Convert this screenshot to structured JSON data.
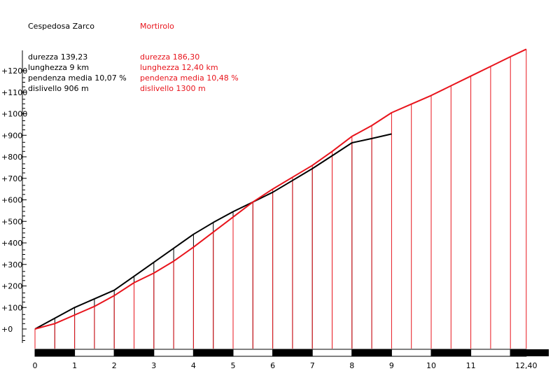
{
  "chart_data": {
    "type": "line",
    "xlabel": "",
    "ylabel": "",
    "xlim": [
      0,
      12.4
    ],
    "ylim": [
      0,
      1300
    ],
    "x_tick_labels": [
      "0",
      "1",
      "2",
      "3",
      "4",
      "5",
      "6",
      "7",
      "8",
      "9",
      "10",
      "11",
      "12,40"
    ],
    "y_tick_labels": [
      "+0",
      "+100",
      "+200",
      "+300",
      "+400",
      "+500",
      "+600",
      "+700",
      "+800",
      "+900",
      "+1000",
      "+1100",
      "+1200"
    ],
    "y_tick_values": [
      0,
      100,
      200,
      300,
      400,
      500,
      600,
      700,
      800,
      900,
      1000,
      1100,
      1200
    ],
    "series": [
      {
        "name": "Cespedosa Zarco",
        "color": "#000000",
        "x": [
          0,
          0.5,
          1,
          1.5,
          2,
          2.5,
          3,
          3.5,
          4,
          4.5,
          5,
          5.5,
          6,
          6.5,
          7,
          7.5,
          8,
          8.5,
          9
        ],
        "y": [
          0,
          50,
          100,
          140,
          180,
          245,
          310,
          375,
          440,
          495,
          545,
          590,
          635,
          690,
          745,
          805,
          865,
          885,
          906
        ],
        "stats": [
          "durezza 139,23",
          "lunghezza 9 km",
          "pendenza media 10,07 %",
          "dislivello 906 m"
        ]
      },
      {
        "name": "Mortirolo",
        "color": "#e8141c",
        "x": [
          0,
          0.5,
          1,
          1.5,
          2,
          2.5,
          3,
          3.5,
          4,
          4.5,
          5,
          5.5,
          6,
          6.5,
          7,
          7.5,
          8,
          8.5,
          9,
          9.5,
          10,
          10.5,
          11,
          11.5,
          12,
          12.4
        ],
        "y": [
          0,
          25,
          65,
          105,
          155,
          215,
          260,
          315,
          380,
          450,
          520,
          590,
          650,
          705,
          760,
          825,
          895,
          945,
          1005,
          1045,
          1085,
          1130,
          1175,
          1220,
          1265,
          1300
        ],
        "stats": [
          "durezza 186,30",
          "lunghezza 12,40 km",
          "pendenza media 10,48 %",
          "dislivello 1300 m"
        ]
      }
    ]
  }
}
